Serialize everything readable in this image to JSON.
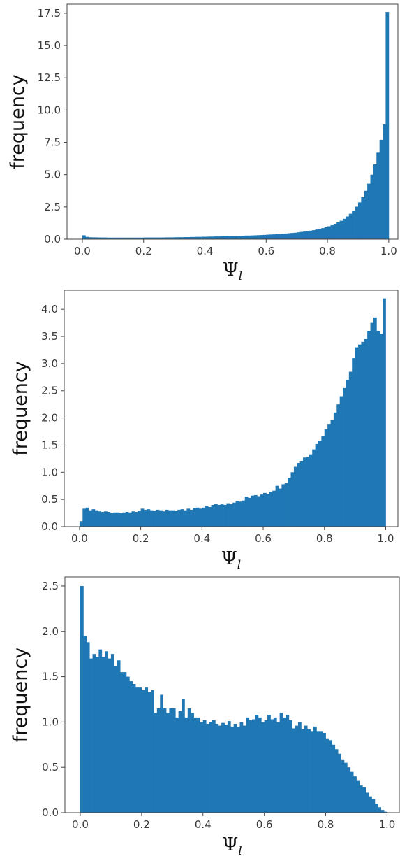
{
  "chart_data": [
    {
      "type": "bar",
      "title": "",
      "xlabel": "Ψ",
      "xlabel_sub": "l",
      "ylabel": "frequency",
      "xlim": [
        -0.05,
        1.03
      ],
      "ylim": [
        0,
        18.2
      ],
      "xticks": [
        "0.0",
        "0.2",
        "0.4",
        "0.6",
        "0.8",
        "1.0"
      ],
      "yticks": [
        "0.0",
        "2.5",
        "5.0",
        "7.5",
        "10.0",
        "12.5",
        "15.0",
        "17.5"
      ],
      "bins": 100,
      "bin_range": [
        0,
        1
      ],
      "values": [
        0.3,
        0.18,
        0.15,
        0.14,
        0.14,
        0.13,
        0.13,
        0.13,
        0.12,
        0.12,
        0.12,
        0.12,
        0.12,
        0.12,
        0.12,
        0.12,
        0.12,
        0.12,
        0.12,
        0.12,
        0.13,
        0.13,
        0.13,
        0.13,
        0.13,
        0.13,
        0.13,
        0.14,
        0.14,
        0.14,
        0.15,
        0.15,
        0.15,
        0.16,
        0.16,
        0.17,
        0.17,
        0.18,
        0.18,
        0.19,
        0.19,
        0.2,
        0.2,
        0.21,
        0.21,
        0.22,
        0.22,
        0.23,
        0.24,
        0.24,
        0.25,
        0.26,
        0.27,
        0.28,
        0.28,
        0.29,
        0.3,
        0.31,
        0.32,
        0.33,
        0.35,
        0.36,
        0.37,
        0.39,
        0.4,
        0.42,
        0.44,
        0.46,
        0.48,
        0.5,
        0.53,
        0.56,
        0.59,
        0.62,
        0.66,
        0.7,
        0.75,
        0.8,
        0.86,
        0.93,
        1.0,
        1.08,
        1.18,
        1.3,
        1.43,
        1.58,
        1.76,
        1.97,
        2.22,
        2.52,
        2.85,
        3.25,
        3.75,
        4.3,
        5.0,
        5.8,
        6.7,
        7.7,
        8.9,
        17.6
      ]
    },
    {
      "type": "bar",
      "title": "",
      "xlabel": "Ψ",
      "xlabel_sub": "l",
      "ylabel": "frequency",
      "xlim": [
        -0.05,
        1.04
      ],
      "ylim": [
        0,
        4.35
      ],
      "xticks": [
        "0.0",
        "0.2",
        "0.4",
        "0.6",
        "0.8",
        "1.0"
      ],
      "yticks": [
        "0.0",
        "0.5",
        "1.0",
        "1.5",
        "2.0",
        "2.5",
        "3.0",
        "3.5",
        "4.0"
      ],
      "bins": 100,
      "bin_range": [
        0,
        1
      ],
      "values": [
        0.1,
        0.33,
        0.35,
        0.3,
        0.32,
        0.3,
        0.28,
        0.27,
        0.28,
        0.27,
        0.25,
        0.26,
        0.26,
        0.25,
        0.26,
        0.27,
        0.26,
        0.28,
        0.27,
        0.29,
        0.33,
        0.31,
        0.32,
        0.3,
        0.29,
        0.31,
        0.3,
        0.28,
        0.31,
        0.3,
        0.3,
        0.29,
        0.31,
        0.32,
        0.3,
        0.33,
        0.31,
        0.34,
        0.35,
        0.33,
        0.35,
        0.38,
        0.36,
        0.4,
        0.42,
        0.4,
        0.41,
        0.4,
        0.43,
        0.42,
        0.44,
        0.47,
        0.46,
        0.48,
        0.55,
        0.53,
        0.57,
        0.58,
        0.56,
        0.59,
        0.62,
        0.6,
        0.64,
        0.66,
        0.75,
        0.7,
        0.78,
        0.8,
        0.9,
        1.0,
        1.1,
        1.17,
        1.21,
        1.27,
        1.28,
        1.33,
        1.42,
        1.52,
        1.58,
        1.66,
        1.79,
        1.89,
        1.97,
        2.1,
        2.25,
        2.4,
        2.55,
        2.7,
        2.85,
        3.1,
        3.3,
        3.35,
        3.4,
        3.45,
        3.6,
        3.75,
        3.85,
        3.6,
        3.55,
        4.2
      ]
    },
    {
      "type": "bar",
      "title": "",
      "xlabel": "Ψ",
      "xlabel_sub": "l",
      "ylabel": "frequency",
      "xlim": [
        -0.05,
        1.04
      ],
      "ylim": [
        0,
        2.6
      ],
      "xticks": [
        "0.0",
        "0.2",
        "0.4",
        "0.6",
        "0.8",
        "1.0"
      ],
      "yticks": [
        "0.0",
        "0.5",
        "1.0",
        "1.5",
        "2.0",
        "2.5"
      ],
      "bins": 100,
      "bin_range": [
        0,
        1
      ],
      "values": [
        2.5,
        1.95,
        1.88,
        1.7,
        1.75,
        1.72,
        1.8,
        1.72,
        1.78,
        1.7,
        1.75,
        1.62,
        1.68,
        1.55,
        1.55,
        1.5,
        1.45,
        1.42,
        1.38,
        1.38,
        1.35,
        1.38,
        1.33,
        1.35,
        1.1,
        1.15,
        1.3,
        1.15,
        1.1,
        1.15,
        1.15,
        1.05,
        1.12,
        1.25,
        1.05,
        1.15,
        1.1,
        1.05,
        1.05,
        1.0,
        1.02,
        0.98,
        1.0,
        1.02,
        0.98,
        0.96,
        0.99,
        0.97,
        1.01,
        0.95,
        0.98,
        0.95,
        1.0,
        0.96,
        1.05,
        1.02,
        1.03,
        1.08,
        1.05,
        1.0,
        1.02,
        1.08,
        1.03,
        1.05,
        1.0,
        1.1,
        1.05,
        1.08,
        1.02,
        0.93,
        0.96,
        1.0,
        0.92,
        0.96,
        0.92,
        0.9,
        0.95,
        0.9,
        0.9,
        0.88,
        0.82,
        0.8,
        0.75,
        0.7,
        0.65,
        0.58,
        0.55,
        0.5,
        0.45,
        0.4,
        0.35,
        0.3,
        0.28,
        0.22,
        0.18,
        0.15,
        0.1,
        0.06,
        0.03,
        0.01
      ]
    }
  ],
  "colors": {
    "bar": "#1f77b4",
    "axes": "#444444",
    "tick_text": "#3a3a3a",
    "label_text": "#111111"
  }
}
